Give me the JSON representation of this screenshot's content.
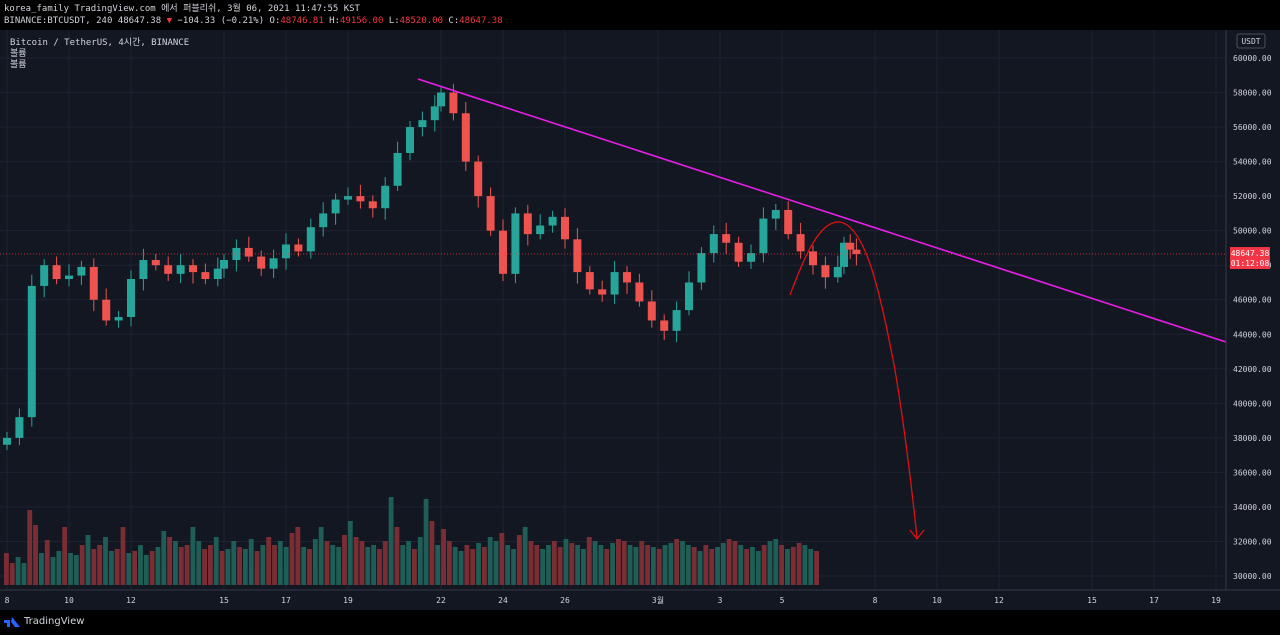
{
  "header": {
    "line1": "korea_family TradingView.com 에서 퍼블리쉬, 3월 06, 2021 11:47:55 KST",
    "line2_symbol": "BINANCE:BTCUSDT, 240",
    "line2_price": "48647.38",
    "line2_change": "−104.33 (−0.21%)",
    "o_label": "O:",
    "o_value": "48746.81",
    "h_label": "H:",
    "h_value": "49156.00",
    "l_label": "L:",
    "l_value": "48520.00",
    "c_label": "C:",
    "c_value": "48647.38"
  },
  "legend": {
    "title": "Bitcoin / TetherUS, 4시간, BINANCE",
    "line2": "볼륨",
    "line3": "볼륨"
  },
  "footer": {
    "brand": "TradingView"
  },
  "chart_data": {
    "type": "candlestick",
    "currency_label": "USDT",
    "last_price_label": "48647.38",
    "countdown_label": "01:12:08",
    "last_price": 48647.38,
    "ylim": [
      29500,
      61500
    ],
    "y_ticks": [
      "60000.00",
      "58000.00",
      "56000.00",
      "54000.00",
      "52000.00",
      "50000.00",
      "48000.00",
      "46000.00",
      "44000.00",
      "42000.00",
      "40000.00",
      "38000.00",
      "36000.00",
      "34000.00",
      "32000.00",
      "30000.00"
    ],
    "x_ticks": [
      {
        "label": "8",
        "day": 8
      },
      {
        "label": "10",
        "day": 10
      },
      {
        "label": "12",
        "day": 12
      },
      {
        "label": "15",
        "day": 15
      },
      {
        "label": "17",
        "day": 17
      },
      {
        "label": "19",
        "day": 19
      },
      {
        "label": "22",
        "day": 22
      },
      {
        "label": "24",
        "day": 24
      },
      {
        "label": "26",
        "day": 26
      },
      {
        "label": "3월",
        "day": 29
      },
      {
        "label": "3",
        "day": 31
      },
      {
        "label": "5",
        "day": 33
      },
      {
        "label": "8",
        "day": 36
      },
      {
        "label": "10",
        "day": 38
      },
      {
        "label": "12",
        "day": 40
      },
      {
        "label": "15",
        "day": 43
      },
      {
        "label": "17",
        "day": 45
      },
      {
        "label": "19",
        "day": 47
      }
    ],
    "price_path": [
      {
        "d": 8.0,
        "p": 38000
      },
      {
        "d": 8.4,
        "p": 39200
      },
      {
        "d": 8.8,
        "p": 46800
      },
      {
        "d": 9.2,
        "p": 48000
      },
      {
        "d": 9.6,
        "p": 47200
      },
      {
        "d": 10.0,
        "p": 47400
      },
      {
        "d": 10.4,
        "p": 47900
      },
      {
        "d": 10.8,
        "p": 46000
      },
      {
        "d": 11.2,
        "p": 44800
      },
      {
        "d": 11.6,
        "p": 45000
      },
      {
        "d": 12.0,
        "p": 47200
      },
      {
        "d": 12.4,
        "p": 48300
      },
      {
        "d": 12.8,
        "p": 48000
      },
      {
        "d": 13.2,
        "p": 47500
      },
      {
        "d": 13.6,
        "p": 48000
      },
      {
        "d": 14.0,
        "p": 47600
      },
      {
        "d": 14.4,
        "p": 47200
      },
      {
        "d": 14.8,
        "p": 47800
      },
      {
        "d": 15.0,
        "p": 48300
      },
      {
        "d": 15.4,
        "p": 49000
      },
      {
        "d": 15.8,
        "p": 48500
      },
      {
        "d": 16.2,
        "p": 47800
      },
      {
        "d": 16.6,
        "p": 48400
      },
      {
        "d": 17.0,
        "p": 49200
      },
      {
        "d": 17.4,
        "p": 48800
      },
      {
        "d": 17.8,
        "p": 50200
      },
      {
        "d": 18.2,
        "p": 51000
      },
      {
        "d": 18.6,
        "p": 51800
      },
      {
        "d": 19.0,
        "p": 52000
      },
      {
        "d": 19.4,
        "p": 51700
      },
      {
        "d": 19.8,
        "p": 51300
      },
      {
        "d": 20.2,
        "p": 52600
      },
      {
        "d": 20.6,
        "p": 54500
      },
      {
        "d": 21.0,
        "p": 56000
      },
      {
        "d": 21.4,
        "p": 56400
      },
      {
        "d": 21.8,
        "p": 57200
      },
      {
        "d": 22.0,
        "p": 58000
      },
      {
        "d": 22.4,
        "p": 56800
      },
      {
        "d": 22.8,
        "p": 54000
      },
      {
        "d": 23.2,
        "p": 52000
      },
      {
        "d": 23.6,
        "p": 50000
      },
      {
        "d": 24.0,
        "p": 47500
      },
      {
        "d": 24.4,
        "p": 51000
      },
      {
        "d": 24.8,
        "p": 49800
      },
      {
        "d": 25.2,
        "p": 50300
      },
      {
        "d": 25.6,
        "p": 50800
      },
      {
        "d": 26.0,
        "p": 49500
      },
      {
        "d": 26.4,
        "p": 47600
      },
      {
        "d": 26.8,
        "p": 46600
      },
      {
        "d": 27.2,
        "p": 46300
      },
      {
        "d": 27.6,
        "p": 47600
      },
      {
        "d": 28.0,
        "p": 47000
      },
      {
        "d": 28.4,
        "p": 45900
      },
      {
        "d": 28.8,
        "p": 44800
      },
      {
        "d": 29.2,
        "p": 44200
      },
      {
        "d": 29.6,
        "p": 45400
      },
      {
        "d": 30.0,
        "p": 47000
      },
      {
        "d": 30.4,
        "p": 48700
      },
      {
        "d": 30.8,
        "p": 49800
      },
      {
        "d": 31.2,
        "p": 49300
      },
      {
        "d": 31.6,
        "p": 48200
      },
      {
        "d": 32.0,
        "p": 48700
      },
      {
        "d": 32.4,
        "p": 50700
      },
      {
        "d": 32.8,
        "p": 51200
      },
      {
        "d": 33.2,
        "p": 49800
      },
      {
        "d": 33.6,
        "p": 48800
      },
      {
        "d": 34.0,
        "p": 48000
      },
      {
        "d": 34.4,
        "p": 47300
      },
      {
        "d": 34.8,
        "p": 47900
      },
      {
        "d": 35.0,
        "p": 49300
      },
      {
        "d": 35.2,
        "p": 48900
      },
      {
        "d": 35.4,
        "p": 48647
      }
    ],
    "volume_heights": [
      32,
      22,
      28,
      22,
      75,
      60,
      32,
      45,
      28,
      34,
      58,
      32,
      30,
      40,
      50,
      36,
      40,
      48,
      34,
      36,
      58,
      32,
      34,
      40,
      30,
      34,
      38,
      54,
      48,
      44,
      38,
      40,
      58,
      44,
      36,
      40,
      48,
      34,
      36,
      44,
      38,
      36,
      46,
      34,
      40,
      48,
      40,
      44,
      38,
      52,
      58,
      38,
      36,
      46,
      58,
      44,
      40,
      38,
      50,
      64,
      48,
      44,
      38,
      40,
      36,
      44,
      88,
      58,
      40,
      44,
      36,
      48,
      86,
      64,
      40,
      56,
      44,
      38,
      34,
      40,
      36,
      42,
      38,
      48,
      44,
      52,
      40,
      36,
      50,
      58,
      44,
      40,
      36,
      40,
      44,
      38,
      46,
      42,
      40,
      36,
      48,
      44,
      40,
      36,
      42,
      46,
      44,
      40,
      38,
      44,
      40,
      38,
      36,
      40,
      42,
      46,
      44,
      40,
      38,
      34,
      40,
      36,
      38,
      42,
      46,
      44,
      40,
      36,
      38,
      34,
      40,
      44,
      46,
      40,
      36,
      38,
      42,
      40,
      36,
      34
    ]
  }
}
